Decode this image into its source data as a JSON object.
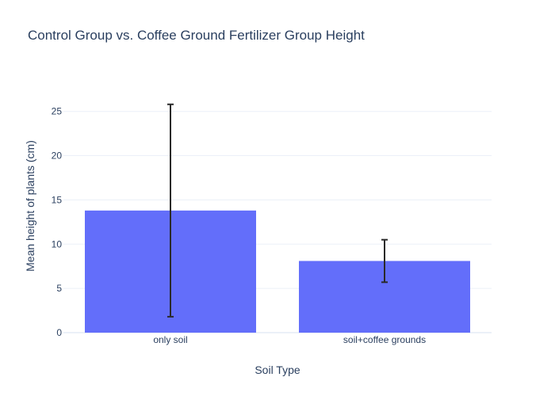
{
  "chart_data": {
    "type": "bar",
    "title": "Control Group vs. Coffee Ground Fertilizer Group Height",
    "xlabel": "Soil Type",
    "ylabel": "Mean height of plants (cm)",
    "categories": [
      "only soil",
      "soil+coffee grounds"
    ],
    "values": [
      13.8,
      8.1
    ],
    "error_low": [
      1.8,
      5.7
    ],
    "error_high": [
      25.8,
      10.5
    ],
    "ylim": [
      0,
      29
    ],
    "yticks": [
      0,
      5,
      10,
      15,
      20,
      25
    ],
    "grid": true,
    "legend": "none",
    "colors": {
      "bar": "#636efa",
      "error_bar": "#2a2a2a",
      "text": "#2a3f5f",
      "grid": "#ebf0f8"
    }
  }
}
